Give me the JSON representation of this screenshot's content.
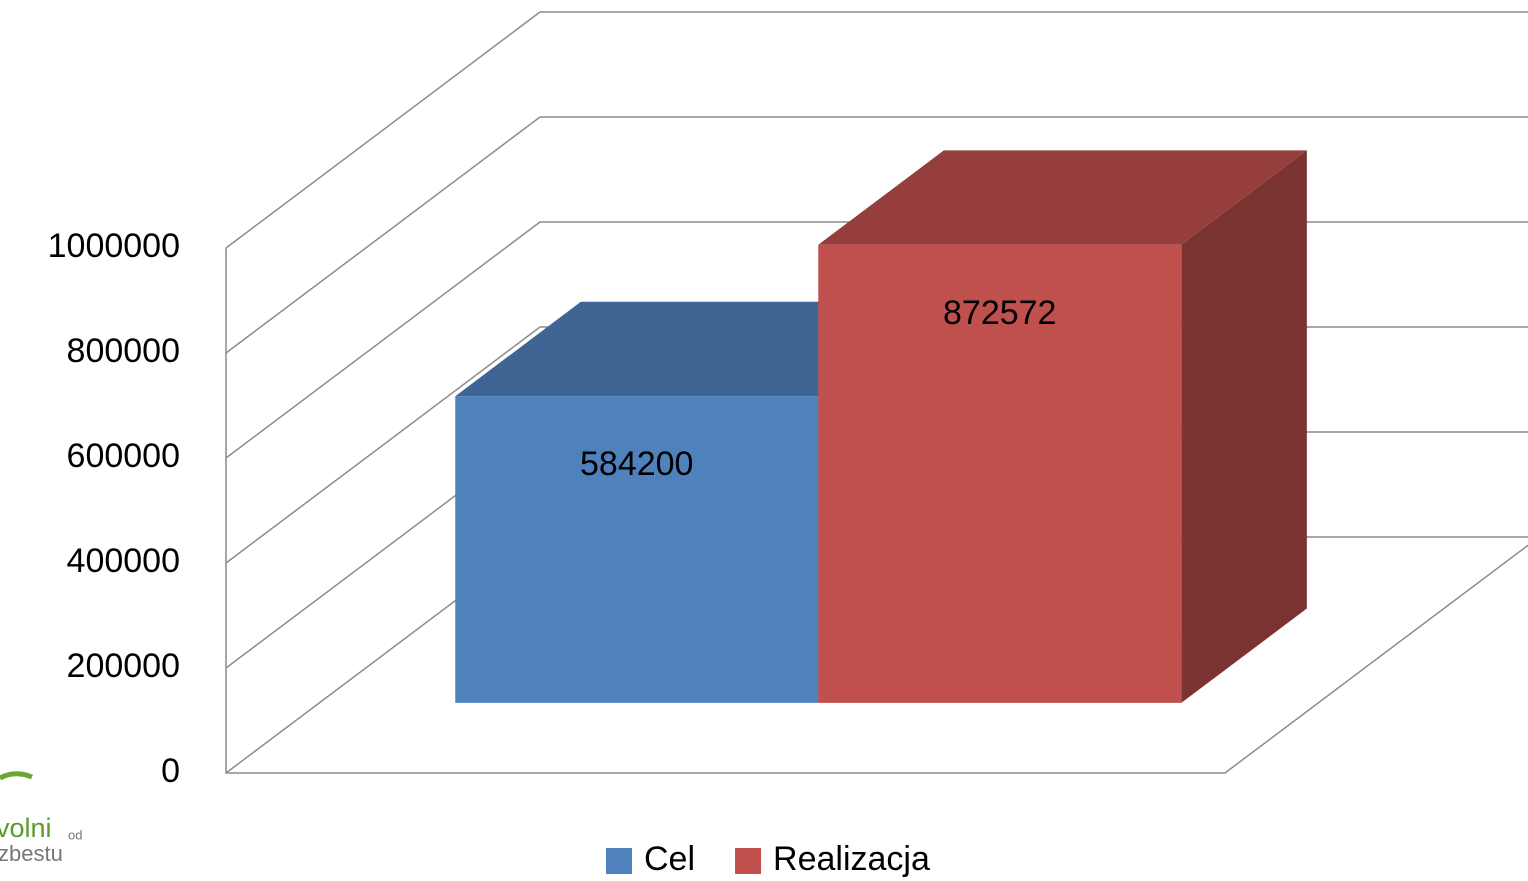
{
  "chart_data": {
    "type": "bar3d",
    "categories": [
      null
    ],
    "series": [
      {
        "name": "Cel",
        "color": "#4f81bd",
        "values": [
          584200
        ]
      },
      {
        "name": "Realizacja",
        "color": "#c0504d",
        "values": [
          872572
        ]
      }
    ],
    "ylim": [
      0,
      1000000
    ],
    "yticks": [
      0,
      200000,
      400000,
      600000,
      800000,
      1000000
    ],
    "grid": true,
    "legend": "bottom"
  },
  "logo": {
    "text": "volni",
    "small": "od",
    "sub": "zbestu"
  }
}
